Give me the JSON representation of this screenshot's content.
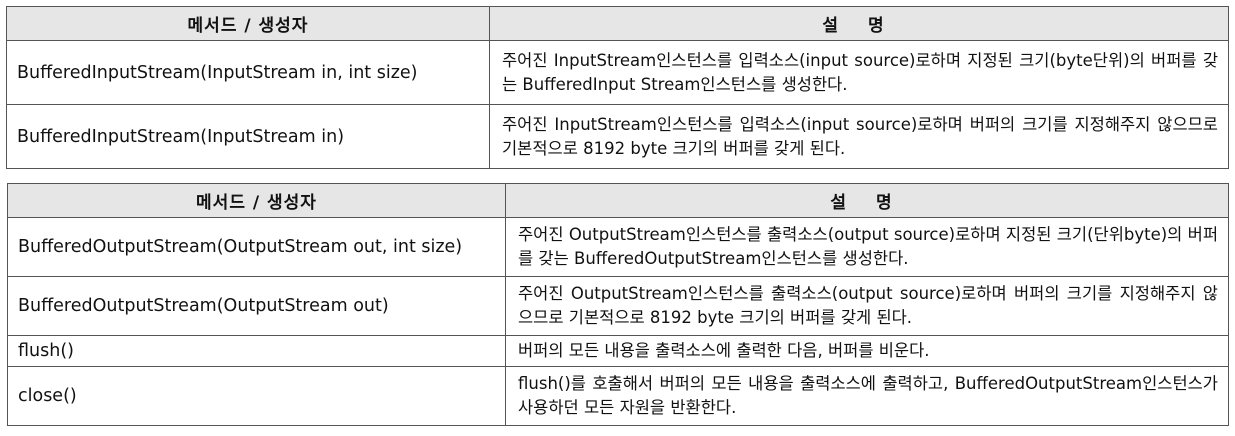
{
  "input_table": {
    "headers": {
      "method": "메서드 / 생성자",
      "description": "설 명"
    },
    "rows": [
      {
        "method": "BufferedInputStream(InputStream in, int size)",
        "description": "주어진 InputStream인스턴스를 입력소스(input source)로하며 지정된 크기(byte단위)의 버퍼를 갖는 BufferedInput Stream인스턴스를 생성한다."
      },
      {
        "method": "BufferedInputStream(InputStream in)",
        "description": "주어진 InputStream인스턴스를 입력소스(input source)로하며 버퍼의 크기를 지정해주지 않으므로 기본적으로 8192 byte 크기의 버퍼를 갖게 된다."
      }
    ]
  },
  "output_table": {
    "headers": {
      "method": "메서드 / 생성자",
      "description": "설 명"
    },
    "rows": [
      {
        "method": "BufferedOutputStream(OutputStream out, int size)",
        "description": "주어진 OutputStream인스턴스를 출력소스(output source)로하며 지정된 크기(단위byte)의 버퍼를 갖는 BufferedOutputStream인스턴스를 생성한다."
      },
      {
        "method": "BufferedOutputStream(OutputStream out)",
        "description": "주어진 OutputStream인스턴스를 출력소스(output source)로하며 버퍼의 크기를 지정해주지 않으므로 기본적으로 8192 byte 크기의 버퍼를 갖게 된다."
      },
      {
        "method": "flush()",
        "description": "버퍼의 모든 내용을 출력소스에 출력한 다음, 버퍼를 비운다."
      },
      {
        "method": "close()",
        "description": "flush()를 호출해서 버퍼의 모든 내용을 출력소스에 출력하고, BufferedOutputStream인스턴스가 사용하던 모든 자원을 반환한다."
      }
    ]
  }
}
